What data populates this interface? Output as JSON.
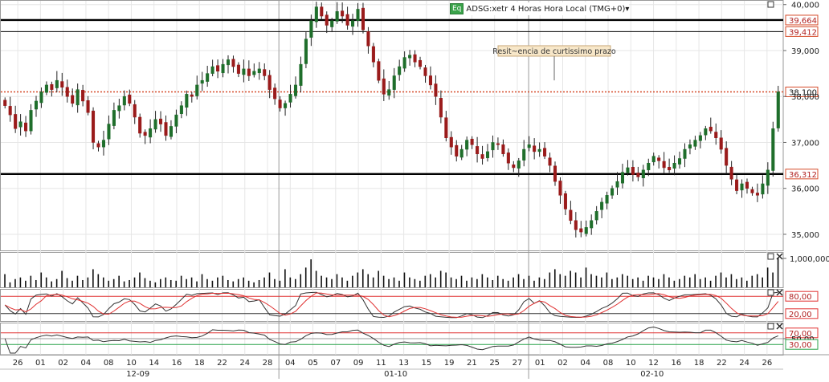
{
  "header": {
    "badge": "Eq",
    "title": "ADSG:xetr 4 Horas Hora Local (TMG+0)▾"
  },
  "annotation": "Resit~encia de curtissimo prazo",
  "colors": {
    "candle_up": "#1f6e2b",
    "candle_down": "#9a1b1b",
    "wick": "#222222",
    "support_line": "#000000",
    "dotted_line": "#d64b2a",
    "grid": "#e6e6e6",
    "oscillator_red": "#e03030",
    "oscillator_black": "#333333",
    "rsi_green": "#2aa34a"
  },
  "chart_data": [
    {
      "type": "candlestick",
      "name": "price",
      "y_ticks": [
        35000,
        36000,
        37000,
        38000,
        39000,
        40000
      ],
      "y_tick_labels": [
        "35,000",
        "36,000",
        "37,000",
        "38,000",
        "39,000",
        "40,000"
      ],
      "ylim": [
        34650,
        40100
      ],
      "horizontal_lines": [
        {
          "value": 39664,
          "label": "39,664",
          "style": "thick"
        },
        {
          "value": 39412,
          "label": "39,412",
          "style": "thin"
        },
        {
          "value": 38100,
          "label": "38,100",
          "style": "dotted"
        },
        {
          "value": 36312,
          "label": "36,312",
          "style": "thick"
        }
      ],
      "grid": true,
      "x_tick_labels": [
        "26",
        "01",
        "02",
        "04",
        "08",
        "10",
        "14",
        "16",
        "18",
        "22",
        "24",
        "28",
        "04",
        "05",
        "07",
        "09",
        "11",
        "13",
        "15",
        "19",
        "21",
        "25",
        "27",
        "01",
        "02",
        "04",
        "08",
        "10",
        "12",
        "16",
        "18",
        "22",
        "24",
        "26"
      ],
      "month_labels": [
        "12-09",
        "01-10",
        "02-10"
      ],
      "close": [
        37800,
        37600,
        37300,
        37450,
        37250,
        37700,
        37900,
        38100,
        38250,
        38150,
        38350,
        38200,
        38000,
        37850,
        38150,
        37900,
        37650,
        37000,
        36900,
        37050,
        37400,
        37700,
        37800,
        38000,
        37850,
        37550,
        37200,
        37150,
        37300,
        37500,
        37400,
        37150,
        37350,
        37600,
        37800,
        38050,
        38000,
        38250,
        38350,
        38500,
        38650,
        38550,
        38700,
        38800,
        38650,
        38500,
        38600,
        38450,
        38550,
        38600,
        38450,
        38150,
        37950,
        37750,
        37850,
        38050,
        38250,
        38700,
        39250,
        39650,
        39950,
        39750,
        39550,
        39650,
        39850,
        39750,
        39550,
        39650,
        39900,
        39450,
        39100,
        38750,
        38350,
        38050,
        38150,
        38450,
        38650,
        38850,
        38900,
        38750,
        38650,
        38450,
        38250,
        38000,
        37550,
        37100,
        36900,
        36700,
        36850,
        37050,
        36950,
        36750,
        36650,
        36800,
        37000,
        36950,
        36750,
        36550,
        36450,
        36600,
        36850,
        36950,
        36800,
        36850,
        36700,
        36500,
        36150,
        35850,
        35550,
        35300,
        35100,
        35050,
        35150,
        35300,
        35500,
        35700,
        35850,
        36000,
        36150,
        36350,
        36450,
        36300,
        36250,
        36400,
        36550,
        36700,
        36600,
        36450,
        36400,
        36550,
        36650,
        36850,
        36950,
        37050,
        37150,
        37300,
        37250,
        37100,
        36850,
        36500,
        36200,
        35950,
        36100,
        36000,
        35900,
        35850,
        36100,
        36400,
        37300,
        38100
      ],
      "volume": [
        0.4,
        0.15,
        0.25,
        0.3,
        0.2,
        0.35,
        0.22,
        0.45,
        0.3,
        0.18,
        0.25,
        0.5,
        0.28,
        0.2,
        0.35,
        0.22,
        0.3,
        0.55,
        0.4,
        0.3,
        0.2,
        0.25,
        0.35,
        0.18,
        0.22,
        0.3,
        0.45,
        0.28,
        0.2,
        0.15,
        0.25,
        0.3,
        0.22,
        0.2,
        0.35,
        0.25,
        0.3,
        0.18,
        0.4,
        0.25,
        0.2,
        0.3,
        0.35,
        0.22,
        0.18,
        0.25,
        0.3,
        0.2,
        0.15,
        0.22,
        0.3,
        0.45,
        0.25,
        0.2,
        0.55,
        0.3,
        0.25,
        0.4,
        0.6,
        0.85,
        0.5,
        0.35,
        0.3,
        0.25,
        0.4,
        0.3,
        0.2,
        0.35,
        0.45,
        0.55,
        0.4,
        0.3,
        0.5,
        0.35,
        0.25,
        0.3,
        0.2,
        0.45,
        0.3,
        0.25,
        0.2,
        0.35,
        0.4,
        0.3,
        0.5,
        0.45,
        0.3,
        0.25,
        0.35,
        0.2,
        0.3,
        0.25,
        0.4,
        0.3,
        0.22,
        0.35,
        0.25,
        0.2,
        0.3,
        0.4,
        0.25,
        0.35,
        0.2,
        0.3,
        0.25,
        0.45,
        0.55,
        0.4,
        0.35,
        0.5,
        0.45,
        0.3,
        0.6,
        0.4,
        0.35,
        0.3,
        0.45,
        0.25,
        0.3,
        0.4,
        0.35,
        0.25,
        0.3,
        0.2,
        0.35,
        0.3,
        0.25,
        0.4,
        0.3,
        0.2,
        0.25,
        0.35,
        0.3,
        0.4,
        0.25,
        0.3,
        0.2,
        0.35,
        0.45,
        0.3,
        0.4,
        0.25,
        0.3,
        0.2,
        0.35,
        0.4,
        0.3,
        0.6,
        0.45,
        0.9
      ]
    },
    {
      "type": "bar",
      "name": "volume",
      "y_tick_labels": [
        "1,000,000"
      ]
    },
    {
      "type": "line",
      "name": "stochastic",
      "y_tick_labels": [
        "80,00",
        "20,00"
      ],
      "levels": [
        80,
        20
      ]
    },
    {
      "type": "line",
      "name": "rsi",
      "y_tick_labels": [
        "70,00",
        "50,00",
        "30,00"
      ],
      "levels": [
        70,
        50,
        30
      ]
    }
  ]
}
